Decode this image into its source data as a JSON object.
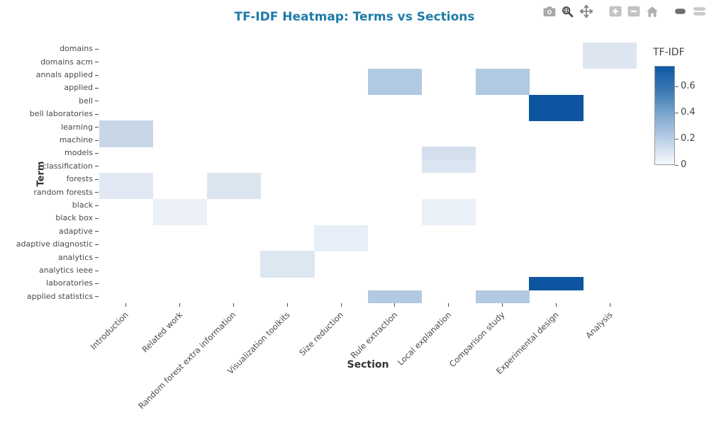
{
  "title": {
    "text": "TF-IDF Heatmap: Terms vs Sections",
    "color": "#1f7ca9"
  },
  "modebar": {
    "icons": [
      {
        "name": "camera-icon",
        "label": "Download plot as png"
      },
      {
        "name": "zoom-icon",
        "label": "Zoom"
      },
      {
        "name": "pan-icon",
        "label": "Pan"
      },
      {
        "name": "zoom-in-icon",
        "label": "Zoom in"
      },
      {
        "name": "zoom-out-icon",
        "label": "Zoom out"
      },
      {
        "name": "home-icon",
        "label": "Reset axes"
      },
      {
        "name": "plotly-logo-icon",
        "label": "Produced with Plotly"
      }
    ]
  },
  "chart_data": {
    "type": "heatmap",
    "title": "TF-IDF Heatmap: Terms vs Sections",
    "xlabel": "Section",
    "ylabel": "Term",
    "x_categories": [
      "Introduction",
      "Related work",
      "Random forest extra information",
      "Visualization toolkits",
      "Size reduction",
      "Rule extraction",
      "Local explanation",
      "Comparison study",
      "Experimental design",
      "Analysis"
    ],
    "y_categories": [
      "domains",
      "domains acm",
      "annals applied",
      "applied",
      "bell",
      "bell laboratories",
      "learning",
      "machine",
      "models",
      "classification",
      "forests",
      "random forests",
      "black",
      "black box",
      "adaptive",
      "adaptive diagnostic",
      "analytics",
      "analytics ieee",
      "laboratories",
      "applied statistics"
    ],
    "colorbar": {
      "title": "TF-IDF",
      "ticks": [
        0,
        0.2,
        0.4,
        0.6
      ],
      "min": 0,
      "max": 0.76,
      "top_color": "#0d5aa6",
      "mid_color": "#7fa8cf",
      "bottom_color": "#f7fafc",
      "colorscale": "Blues"
    },
    "legend_position": "right",
    "grid": false,
    "cells": [
      {
        "term": "domains",
        "section": "Analysis",
        "row": 0,
        "col": 9,
        "value": 0.13,
        "color": "#dde6f0"
      },
      {
        "term": "domains acm",
        "section": "Analysis",
        "row": 1,
        "col": 9,
        "value": 0.13,
        "color": "#dde6f0"
      },
      {
        "term": "annals applied",
        "section": "Rule extraction",
        "row": 2,
        "col": 5,
        "value": 0.31,
        "color": "#b2c9e2"
      },
      {
        "term": "annals applied",
        "section": "Comparison study",
        "row": 2,
        "col": 7,
        "value": 0.31,
        "color": "#b2c9e2"
      },
      {
        "term": "applied",
        "section": "Rule extraction",
        "row": 3,
        "col": 5,
        "value": 0.31,
        "color": "#b2c9e2"
      },
      {
        "term": "applied",
        "section": "Comparison study",
        "row": 3,
        "col": 7,
        "value": 0.31,
        "color": "#b2c9e2"
      },
      {
        "term": "bell",
        "section": "Experimental design",
        "row": 4,
        "col": 8,
        "value": 0.75,
        "color": "#0d55a0"
      },
      {
        "term": "bell laboratories",
        "section": "Experimental design",
        "row": 5,
        "col": 8,
        "value": 0.75,
        "color": "#0d55a0"
      },
      {
        "term": "learning",
        "section": "Introduction",
        "row": 6,
        "col": 0,
        "value": 0.21,
        "color": "#c8d7e8"
      },
      {
        "term": "machine",
        "section": "Introduction",
        "row": 7,
        "col": 0,
        "value": 0.21,
        "color": "#c8d7e8"
      },
      {
        "term": "models",
        "section": "Local explanation",
        "row": 8,
        "col": 6,
        "value": 0.16,
        "color": "#d4dfee"
      },
      {
        "term": "classification",
        "section": "Local explanation",
        "row": 9,
        "col": 6,
        "value": 0.13,
        "color": "#dce6f2"
      },
      {
        "term": "forests",
        "section": "Introduction",
        "row": 10,
        "col": 0,
        "value": 0.1,
        "color": "#e2e9f4"
      },
      {
        "term": "forests",
        "section": "Random forest extra information",
        "row": 10,
        "col": 2,
        "value": 0.14,
        "color": "#dbe5f0"
      },
      {
        "term": "random forests",
        "section": "Introduction",
        "row": 11,
        "col": 0,
        "value": 0.1,
        "color": "#e2e9f4"
      },
      {
        "term": "random forests",
        "section": "Random forest extra information",
        "row": 11,
        "col": 2,
        "value": 0.14,
        "color": "#dbe5f0"
      },
      {
        "term": "black",
        "section": "Related work",
        "row": 12,
        "col": 1,
        "value": 0.06,
        "color": "#ecf1f8"
      },
      {
        "term": "black",
        "section": "Local explanation",
        "row": 12,
        "col": 6,
        "value": 0.06,
        "color": "#eaf0f8"
      },
      {
        "term": "black box",
        "section": "Related work",
        "row": 13,
        "col": 1,
        "value": 0.06,
        "color": "#ecf1f8"
      },
      {
        "term": "black box",
        "section": "Local explanation",
        "row": 13,
        "col": 6,
        "value": 0.06,
        "color": "#eaf0f8"
      },
      {
        "term": "adaptive",
        "section": "Size reduction",
        "row": 14,
        "col": 4,
        "value": 0.08,
        "color": "#e8eef7"
      },
      {
        "term": "adaptive diagnostic",
        "section": "Size reduction",
        "row": 15,
        "col": 4,
        "value": 0.08,
        "color": "#e8eef7"
      },
      {
        "term": "analytics",
        "section": "Visualization toolkits",
        "row": 16,
        "col": 3,
        "value": 0.13,
        "color": "#dde7f1"
      },
      {
        "term": "analytics ieee",
        "section": "Visualization toolkits",
        "row": 17,
        "col": 3,
        "value": 0.13,
        "color": "#dde7f1"
      },
      {
        "term": "laboratories",
        "section": "Experimental design",
        "row": 18,
        "col": 8,
        "value": 0.75,
        "color": "#0d55a0"
      },
      {
        "term": "applied statistics",
        "section": "Rule extraction",
        "row": 19,
        "col": 5,
        "value": 0.29,
        "color": "#b3c9e2"
      },
      {
        "term": "applied statistics",
        "section": "Comparison study",
        "row": 19,
        "col": 7,
        "value": 0.29,
        "color": "#b3c9e2"
      }
    ]
  }
}
